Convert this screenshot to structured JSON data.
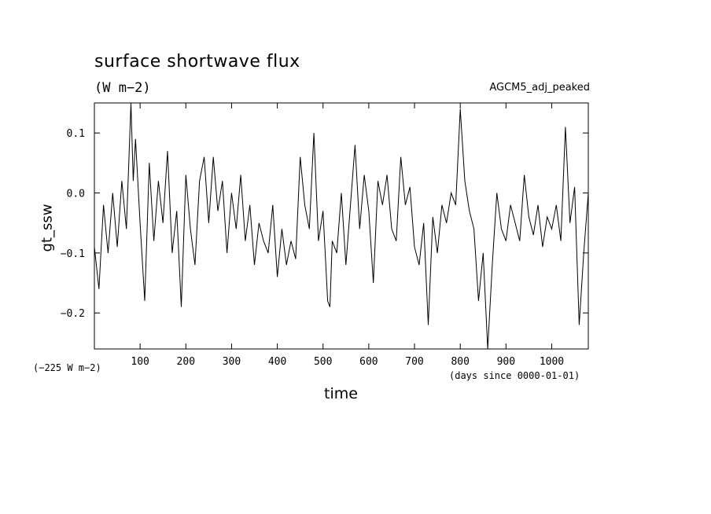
{
  "chart_data": {
    "type": "line",
    "title": "surface shortwave flux",
    "units": "(W m−2)",
    "experiment": "AGCM5_adj_peaked",
    "ylabel": "gt_ssw",
    "xlabel": "time",
    "x_units_note": "(days since 0000-01-01)",
    "offset_note": "(−225 W m−2)",
    "xlim": [
      0,
      1080
    ],
    "ylim": [
      -0.26,
      0.15
    ],
    "x_ticks": [
      100,
      200,
      300,
      400,
      500,
      600,
      700,
      800,
      900,
      1000
    ],
    "x_tick_labels": [
      "100",
      "200",
      "300",
      "400",
      "500",
      "600",
      "700",
      "800",
      "900",
      "1000"
    ],
    "y_ticks": [
      0.1,
      0.0,
      -0.1,
      -0.2
    ],
    "y_tick_labels": [
      "0.1",
      "0.0",
      "−0.1",
      "−0.2"
    ],
    "grid": false,
    "series": [
      {
        "x": [
          0,
          10,
          20,
          30,
          40,
          50,
          60,
          70,
          80,
          85,
          90,
          100,
          110,
          120,
          130,
          140,
          150,
          160,
          170,
          180,
          190,
          200,
          210,
          220,
          230,
          240,
          250,
          260,
          270,
          280,
          290,
          300,
          310,
          320,
          330,
          340,
          350,
          360,
          370,
          380,
          390,
          400,
          410,
          420,
          430,
          440,
          450,
          460,
          470,
          480,
          490,
          500,
          510,
          515,
          520,
          530,
          540,
          550,
          560,
          570,
          580,
          590,
          600,
          610,
          620,
          630,
          640,
          650,
          660,
          670,
          680,
          690,
          700,
          710,
          720,
          730,
          740,
          750,
          760,
          770,
          780,
          790,
          800,
          810,
          820,
          830,
          840,
          850,
          860,
          870,
          880,
          890,
          900,
          910,
          920,
          930,
          940,
          950,
          960,
          970,
          980,
          990,
          1000,
          1010,
          1020,
          1030,
          1040,
          1050,
          1060,
          1070,
          1080
        ],
        "y": [
          -0.09,
          -0.16,
          -0.02,
          -0.1,
          0.0,
          -0.09,
          0.02,
          -0.06,
          0.15,
          0.02,
          0.09,
          -0.05,
          -0.18,
          0.05,
          -0.08,
          0.02,
          -0.05,
          0.07,
          -0.1,
          -0.03,
          -0.19,
          0.03,
          -0.06,
          -0.12,
          0.02,
          0.06,
          -0.05,
          0.06,
          -0.03,
          0.02,
          -0.1,
          0.0,
          -0.06,
          0.03,
          -0.08,
          -0.02,
          -0.12,
          -0.05,
          -0.08,
          -0.1,
          -0.02,
          -0.14,
          -0.06,
          -0.12,
          -0.08,
          -0.11,
          0.06,
          -0.02,
          -0.06,
          0.1,
          -0.08,
          -0.03,
          -0.18,
          -0.19,
          -0.08,
          -0.1,
          0.0,
          -0.12,
          -0.02,
          0.08,
          -0.06,
          0.03,
          -0.03,
          -0.15,
          0.02,
          -0.02,
          0.03,
          -0.06,
          -0.08,
          0.06,
          -0.02,
          0.01,
          -0.09,
          -0.12,
          -0.05,
          -0.22,
          -0.04,
          -0.1,
          -0.02,
          -0.05,
          0.0,
          -0.02,
          0.14,
          0.02,
          -0.03,
          -0.06,
          -0.18,
          -0.1,
          -0.26,
          -0.12,
          0.0,
          -0.06,
          -0.08,
          -0.02,
          -0.05,
          -0.08,
          0.03,
          -0.04,
          -0.07,
          -0.02,
          -0.09,
          -0.04,
          -0.06,
          -0.02,
          -0.08,
          0.11,
          -0.05,
          0.01,
          -0.22,
          -0.1,
          0.0
        ]
      }
    ]
  }
}
